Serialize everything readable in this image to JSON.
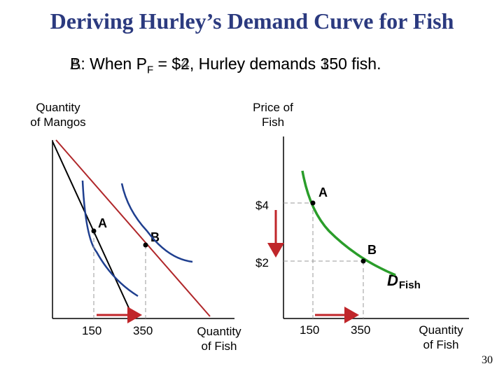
{
  "title": "Deriving Hurley’s Demand Curve for Fish",
  "caption_a": "A: When P",
  "caption_a_sub": "F",
  "caption_a_rest": " = $4, Hurley demands 150 fish.",
  "caption_b": "B: When P",
  "caption_b_sub": "F",
  "caption_b_rest": " = $2, Hurley demands 350 fish.",
  "left_graph": {
    "y_axis_label_line1": "Quantity",
    "y_axis_label_line2": "of Mangos",
    "x_axis_label_line1": "Quantity",
    "x_axis_label_line2": "of Fish",
    "x_ticks": [
      "150",
      "350"
    ],
    "point_a": "A",
    "point_b": "B"
  },
  "right_graph": {
    "y_axis_label_line1": "Price of",
    "y_axis_label_line2": "Fish",
    "x_axis_label_line1": "Quantity",
    "x_axis_label_line2": "of Fish",
    "y_ticks": [
      "$4",
      "$2"
    ],
    "x_ticks": [
      "150",
      "350"
    ],
    "point_a": "A",
    "point_b": "B",
    "curve_label": "D",
    "curve_label_sub": "Fish"
  },
  "page_number": "30",
  "colors": {
    "title": "#2b3a7f",
    "budget_line_a": "#000000",
    "budget_line_b": "#b0272a",
    "indifference_curve": "#1f3f8f",
    "demand_curve": "#2a9d2a",
    "arrow": "#c0262a",
    "dashed": "#999999"
  }
}
